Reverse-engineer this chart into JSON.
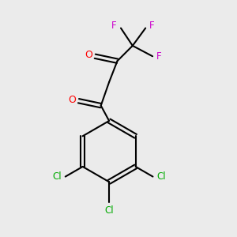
{
  "background_color": "#ebebeb",
  "bond_color": "#000000",
  "oxygen_color": "#ff0000",
  "fluorine_color": "#cc00cc",
  "chlorine_color": "#00aa00",
  "figsize": [
    3.0,
    3.0
  ],
  "dpi": 100,
  "xlim": [
    0,
    10
  ],
  "ylim": [
    0,
    10
  ]
}
